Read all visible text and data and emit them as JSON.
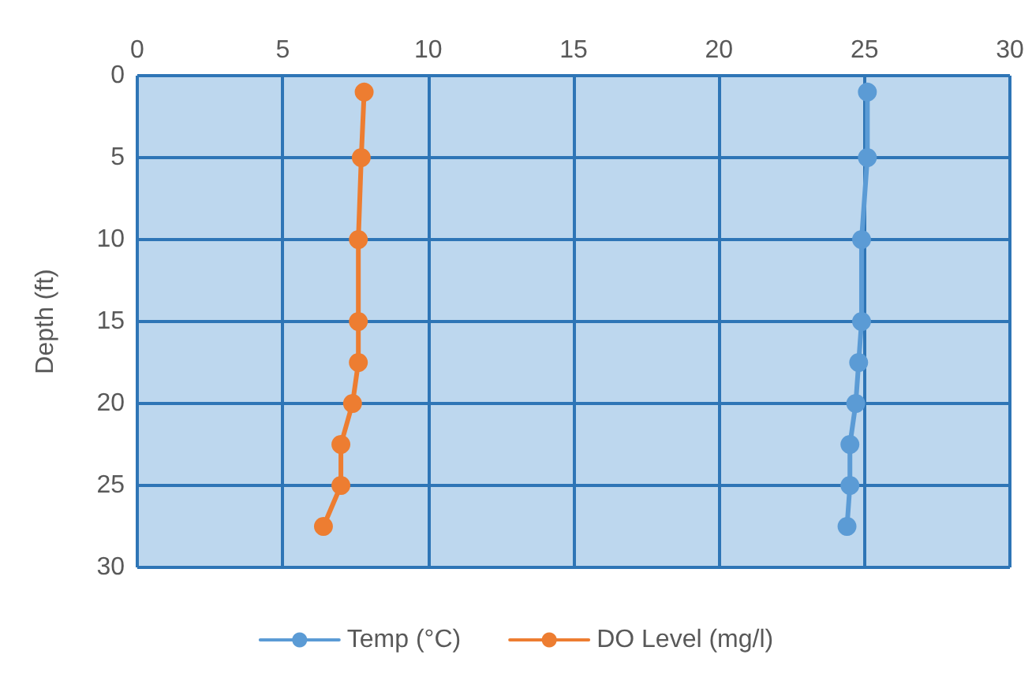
{
  "chart_data": {
    "type": "line",
    "ylabel": "Depth (ft)",
    "xlim": [
      0,
      30
    ],
    "xticks": [
      0,
      5,
      10,
      15,
      20,
      25,
      30
    ],
    "ylim": [
      30,
      0
    ],
    "yticks": [
      0,
      5,
      10,
      15,
      20,
      25,
      30
    ],
    "grid": true,
    "legend": "bottom",
    "marker": "circle",
    "line_style": "solid",
    "series": [
      {
        "name": "Temp (°C)",
        "color": "#5b9bd5",
        "x": [
          25.1,
          25.1,
          24.9,
          24.9,
          24.8,
          24.7,
          24.5,
          24.5,
          24.4
        ],
        "values": [
          1,
          5,
          10,
          15,
          17.5,
          20,
          22.5,
          25,
          27.5
        ]
      },
      {
        "name": "DO Level (mg/l)",
        "color": "#ed7d31",
        "x": [
          7.8,
          7.7,
          7.6,
          7.6,
          7.6,
          7.4,
          7.0,
          7.0,
          6.4
        ],
        "values": [
          1,
          5,
          10,
          15,
          17.5,
          20,
          22.5,
          25,
          27.5
        ]
      }
    ]
  }
}
